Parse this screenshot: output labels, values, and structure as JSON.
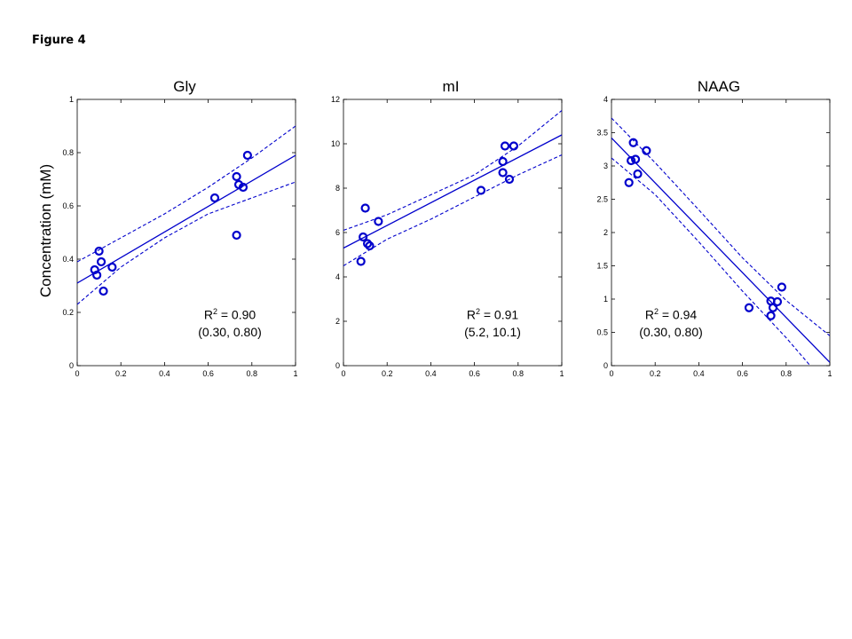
{
  "figure_label": "Figure 4",
  "shared_ylabel": "Concentration (mM)",
  "chart_data": [
    {
      "type": "scatter",
      "title": "Gly",
      "xlim": [
        0,
        1
      ],
      "ylim": [
        0,
        1
      ],
      "xticks": [
        "0",
        "0.2",
        "0.4",
        "0.6",
        "0.8",
        "1"
      ],
      "yticks": [
        "0",
        "0.2",
        "0.4",
        "0.6",
        "0.8",
        "1"
      ],
      "points": {
        "x": [
          0.08,
          0.09,
          0.1,
          0.11,
          0.12,
          0.16,
          0.63,
          0.73,
          0.73,
          0.74,
          0.76,
          0.78
        ],
        "y": [
          0.36,
          0.34,
          0.43,
          0.39,
          0.28,
          0.37,
          0.63,
          0.71,
          0.49,
          0.68,
          0.67,
          0.79
        ]
      },
      "fit": [
        [
          0,
          0.31
        ],
        [
          1,
          0.79
        ]
      ],
      "ci_upper": [
        [
          0,
          0.39
        ],
        [
          0.2,
          0.48
        ],
        [
          0.4,
          0.57
        ],
        [
          0.6,
          0.67
        ],
        [
          0.8,
          0.78
        ],
        [
          1,
          0.9
        ]
      ],
      "ci_lower": [
        [
          0,
          0.23
        ],
        [
          0.2,
          0.37
        ],
        [
          0.4,
          0.48
        ],
        [
          0.6,
          0.57
        ],
        [
          0.8,
          0.63
        ],
        [
          1,
          0.69
        ]
      ],
      "r2_label": "R",
      "r2_sup": "2",
      "r2_value": " = 0.90",
      "range_text": "(0.30, 0.80)",
      "color": "#0000cc"
    },
    {
      "type": "scatter",
      "title": "mI",
      "xlim": [
        0,
        1
      ],
      "ylim": [
        0,
        12
      ],
      "xticks": [
        "0",
        "0.2",
        "0.4",
        "0.6",
        "0.8",
        "1"
      ],
      "yticks": [
        "0",
        "2",
        "4",
        "6",
        "8",
        "10",
        "12"
      ],
      "points": {
        "x": [
          0.08,
          0.09,
          0.1,
          0.11,
          0.12,
          0.16,
          0.63,
          0.73,
          0.73,
          0.74,
          0.76,
          0.78
        ],
        "y": [
          4.7,
          5.8,
          7.1,
          5.5,
          5.4,
          6.5,
          7.9,
          9.2,
          8.7,
          9.9,
          8.4,
          9.9
        ]
      },
      "fit": [
        [
          0,
          5.3
        ],
        [
          1,
          10.4
        ]
      ],
      "ci_upper": [
        [
          0,
          6.1
        ],
        [
          0.2,
          6.8
        ],
        [
          0.4,
          7.7
        ],
        [
          0.6,
          8.6
        ],
        [
          0.8,
          9.9
        ],
        [
          1,
          11.5
        ]
      ],
      "ci_lower": [
        [
          0,
          4.5
        ],
        [
          0.2,
          5.7
        ],
        [
          0.4,
          6.6
        ],
        [
          0.6,
          7.6
        ],
        [
          0.8,
          8.6
        ],
        [
          1,
          9.5
        ]
      ],
      "r2_label": "R",
      "r2_sup": "2",
      "r2_value": " = 0.91",
      "range_text": "(5.2, 10.1)",
      "color": "#0000cc"
    },
    {
      "type": "scatter",
      "title": "NAAG",
      "xlim": [
        0,
        1
      ],
      "ylim": [
        0,
        4
      ],
      "xticks": [
        "0",
        "0.2",
        "0.4",
        "0.6",
        "0.8",
        "1"
      ],
      "yticks": [
        "0",
        "0.5",
        "1",
        "1.5",
        "2",
        "2.5",
        "3",
        "3.5",
        "4"
      ],
      "points": {
        "x": [
          0.08,
          0.09,
          0.1,
          0.11,
          0.12,
          0.16,
          0.63,
          0.73,
          0.73,
          0.74,
          0.76,
          0.78
        ],
        "y": [
          2.75,
          3.08,
          3.35,
          3.1,
          2.88,
          3.23,
          0.87,
          0.97,
          0.75,
          0.87,
          0.96,
          1.18
        ]
      },
      "fit": [
        [
          0,
          3.42
        ],
        [
          1,
          0.05
        ]
      ],
      "ci_upper": [
        [
          0,
          3.72
        ],
        [
          0.2,
          3.05
        ],
        [
          0.4,
          2.34
        ],
        [
          0.6,
          1.62
        ],
        [
          0.8,
          0.98
        ],
        [
          1,
          0.45
        ]
      ],
      "ci_lower": [
        [
          0,
          3.12
        ],
        [
          0.2,
          2.57
        ],
        [
          0.4,
          1.86
        ],
        [
          0.6,
          1.12
        ],
        [
          0.8,
          0.42
        ],
        [
          0.91,
          0.0
        ]
      ],
      "r2_label": "R",
      "r2_sup": "2",
      "r2_value": " = 0.94",
      "range_text": "(0.30, 0.80)",
      "color": "#0000cc"
    }
  ]
}
